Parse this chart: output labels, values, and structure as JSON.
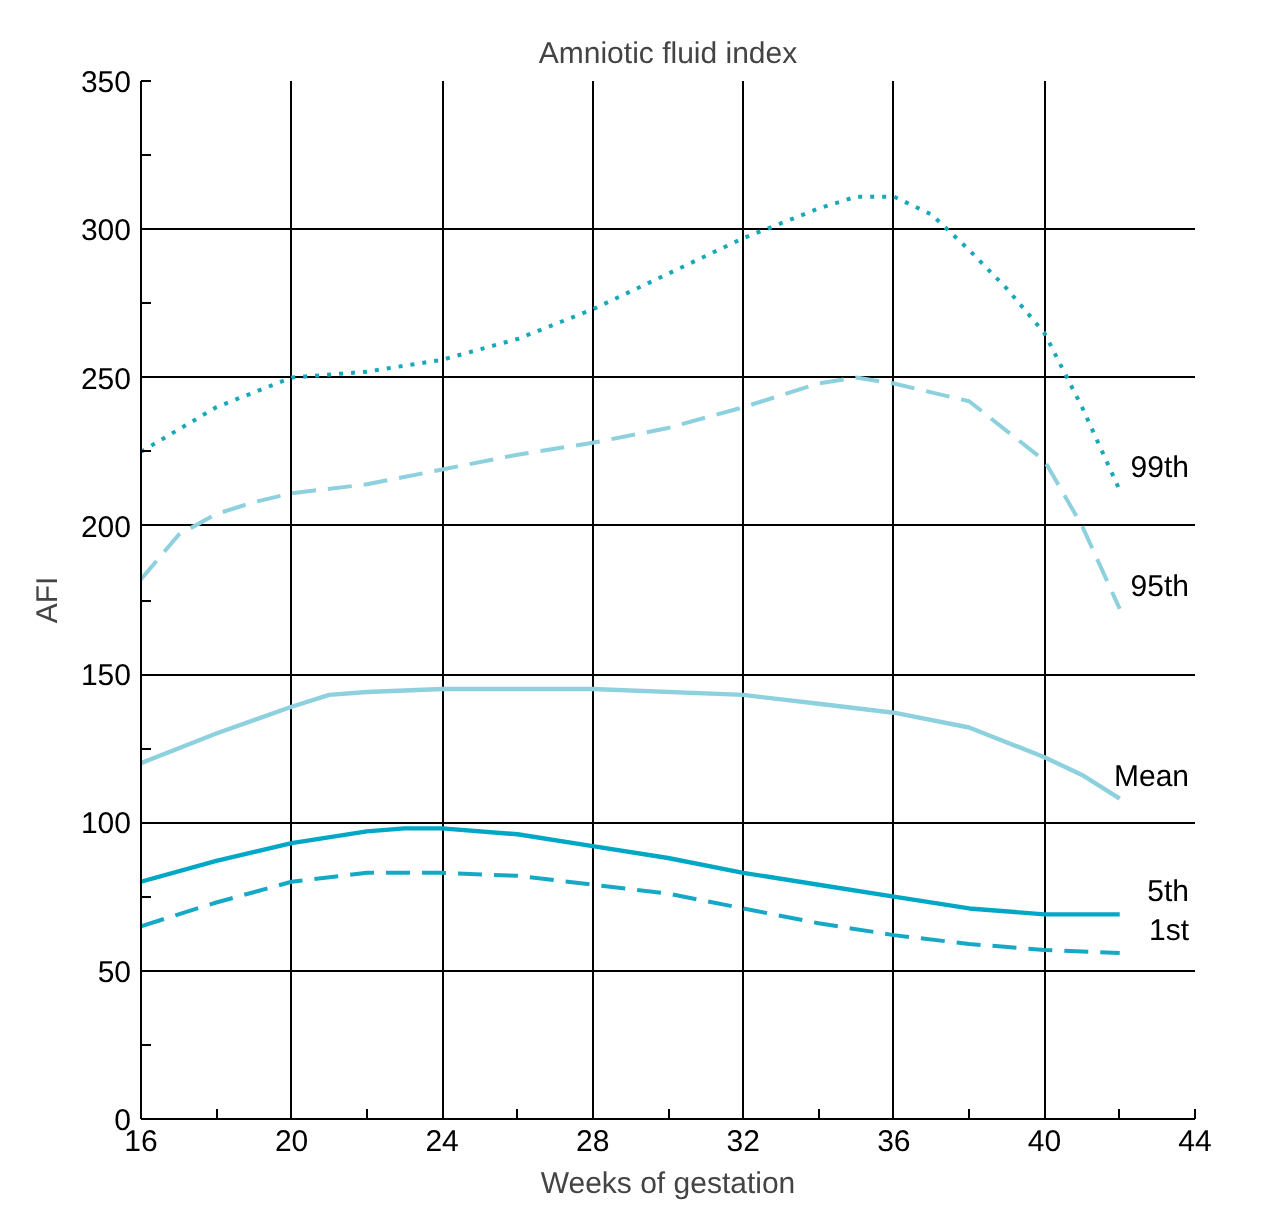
{
  "chart_data": {
    "type": "line",
    "title": "Amniotic fluid index",
    "xlabel": "Weeks of gestation",
    "ylabel": "AFI",
    "xlim": [
      16,
      44
    ],
    "ylim": [
      0,
      350
    ],
    "xticks": [
      16,
      {
        "value": 18,
        "label": null
      },
      20,
      {
        "value": 22,
        "label": null
      },
      24,
      {
        "value": 26,
        "label": null
      },
      28,
      {
        "value": 30,
        "label": null
      },
      32,
      {
        "value": 34,
        "label": null
      },
      36,
      {
        "value": 38,
        "label": null
      },
      40,
      {
        "value": 42,
        "label": null
      },
      44
    ],
    "yticks": [
      0,
      {
        "value": 25,
        "label": null
      },
      50,
      {
        "value": 75,
        "label": null
      },
      100,
      {
        "value": 125,
        "label": null
      },
      150,
      {
        "value": 175,
        "label": null
      },
      200,
      {
        "value": 225,
        "label": null
      },
      250,
      {
        "value": 275,
        "label": null
      },
      300,
      {
        "value": 325,
        "label": null
      },
      350
    ],
    "grid": true,
    "marker": "none",
    "series": [
      {
        "name": "99th",
        "color": "#16a9b9",
        "line_style": "dotted",
        "x": [
          16,
          18,
          20,
          22,
          24,
          26,
          28,
          30,
          32,
          34,
          35,
          36,
          37,
          38,
          39,
          40,
          41,
          42
        ],
        "values": [
          225,
          240,
          250,
          252,
          256,
          263,
          273,
          285,
          297,
          307,
          311,
          311,
          305,
          293,
          280,
          265,
          240,
          212
        ]
      },
      {
        "name": "95th",
        "color": "#8dd0de",
        "line_style": "dashed",
        "x": [
          16,
          17,
          18,
          19,
          20,
          22,
          24,
          26,
          28,
          30,
          32,
          34,
          35,
          36,
          38,
          40,
          41,
          42
        ],
        "values": [
          182,
          197,
          204,
          208,
          211,
          214,
          219,
          224,
          228,
          233,
          240,
          248,
          250,
          248,
          242,
          222,
          200,
          172
        ]
      },
      {
        "name": "Mean",
        "color": "#8dd0de",
        "line_style": "solid",
        "x": [
          16,
          18,
          20,
          21,
          22,
          24,
          28,
          32,
          34,
          36,
          38,
          40,
          41,
          42
        ],
        "values": [
          120,
          130,
          139,
          143,
          144,
          145,
          145,
          143,
          140,
          137,
          132,
          122,
          116,
          108
        ]
      },
      {
        "name": "5th",
        "color": "#00a8c6",
        "line_style": "solid",
        "x": [
          16,
          18,
          20,
          22,
          23,
          24,
          26,
          28,
          30,
          32,
          34,
          36,
          38,
          40,
          42
        ],
        "values": [
          80,
          87,
          93,
          97,
          98,
          98,
          96,
          92,
          88,
          83,
          79,
          75,
          71,
          69,
          69
        ]
      },
      {
        "name": "1st",
        "color": "#16a9c6",
        "line_style": "dashed",
        "x": [
          16,
          18,
          20,
          22,
          24,
          26,
          28,
          30,
          32,
          34,
          36,
          38,
          40,
          42
        ],
        "values": [
          65,
          73,
          80,
          83,
          83,
          82,
          79,
          76,
          71,
          66,
          62,
          59,
          57,
          56
        ]
      }
    ]
  }
}
